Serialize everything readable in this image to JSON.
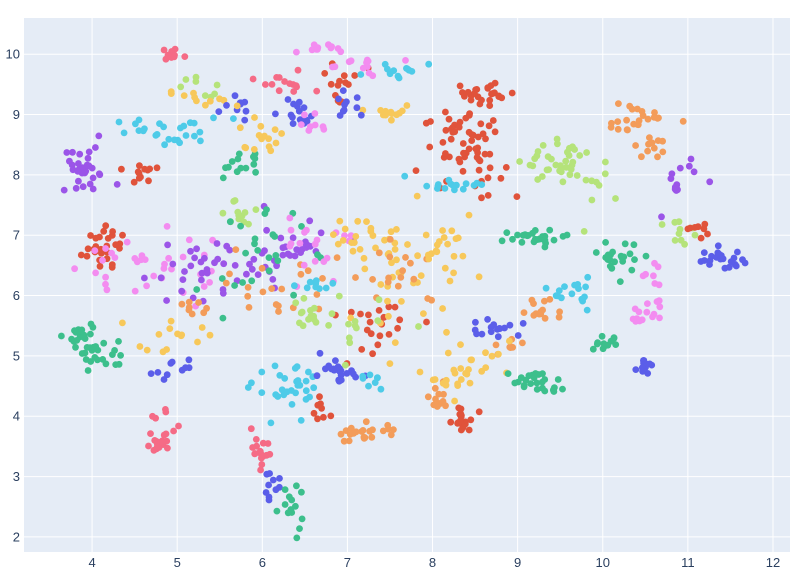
{
  "chart_data": {
    "type": "scatter",
    "title": "",
    "xlabel": "",
    "ylabel": "",
    "xlim": [
      3.2,
      12.2
    ],
    "ylim": [
      1.75,
      10.6
    ],
    "x_ticks": [
      4,
      5,
      6,
      7,
      8,
      9,
      10,
      11,
      12
    ],
    "y_ticks": [
      2,
      3,
      4,
      5,
      6,
      7,
      8,
      9,
      10
    ],
    "x_tick_labels": [
      "4",
      "5",
      "6",
      "7",
      "8",
      "9",
      "10",
      "11",
      "12"
    ],
    "y_tick_labels": [
      "2",
      "3",
      "4",
      "5",
      "6",
      "7",
      "8",
      "9",
      "10"
    ],
    "grid": true,
    "legend": "none",
    "colors": {
      "plot_bg": "#e5ecf6",
      "grid": "#ffffff",
      "red": "#e0533b",
      "blue": "#5b5ee9",
      "green": "#3cbf8c",
      "purple": "#9b55e8",
      "orange": "#f39c5a",
      "cyan": "#4ecbe8",
      "pink": "#f56b86",
      "lightgreen": "#b5e37a",
      "magenta": "#f38cf0",
      "yellow": "#f7c85a"
    },
    "clusters": [
      {
        "color": "purple",
        "cx": 3.9,
        "cy": 8.05,
        "sx": 0.18,
        "sy": 0.2,
        "n": 30
      },
      {
        "color": "cyan",
        "cx": 4.95,
        "cy": 8.7,
        "sx": 0.35,
        "sy": 0.12,
        "n": 26
      },
      {
        "color": "pink",
        "cx": 4.95,
        "cy": 10.0,
        "sx": 0.06,
        "sy": 0.05,
        "n": 10
      },
      {
        "color": "lightgreen",
        "cx": 5.2,
        "cy": 9.5,
        "sx": 0.12,
        "sy": 0.1,
        "n": 8
      },
      {
        "color": "yellow",
        "cx": 5.3,
        "cy": 9.25,
        "sx": 0.2,
        "sy": 0.1,
        "n": 10
      },
      {
        "color": "blue",
        "cx": 5.7,
        "cy": 9.1,
        "sx": 0.1,
        "sy": 0.1,
        "n": 10
      },
      {
        "color": "red",
        "cx": 4.55,
        "cy": 8.0,
        "sx": 0.08,
        "sy": 0.1,
        "n": 12
      },
      {
        "color": "red",
        "cx": 4.1,
        "cy": 6.7,
        "sx": 0.12,
        "sy": 0.15,
        "n": 18
      },
      {
        "color": "red",
        "cx": 4.3,
        "cy": 7.0,
        "sx": 0.15,
        "sy": 0.1,
        "n": 10
      },
      {
        "color": "green",
        "cx": 3.9,
        "cy": 5.35,
        "sx": 0.08,
        "sy": 0.15,
        "n": 20
      },
      {
        "color": "green",
        "cx": 4.1,
        "cy": 5.0,
        "sx": 0.15,
        "sy": 0.12,
        "n": 20
      },
      {
        "color": "pink",
        "cx": 4.8,
        "cy": 3.6,
        "sx": 0.08,
        "sy": 0.1,
        "n": 18
      },
      {
        "color": "pink",
        "cx": 4.95,
        "cy": 4.05,
        "sx": 0.15,
        "sy": 0.15,
        "n": 6
      },
      {
        "color": "magenta",
        "cx": 4.6,
        "cy": 6.5,
        "sx": 0.4,
        "sy": 0.35,
        "n": 35
      },
      {
        "color": "purple",
        "cx": 5.3,
        "cy": 6.4,
        "sx": 0.35,
        "sy": 0.3,
        "n": 35
      },
      {
        "color": "blue",
        "cx": 5.0,
        "cy": 4.8,
        "sx": 0.15,
        "sy": 0.08,
        "n": 10
      },
      {
        "color": "yellow",
        "cx": 4.9,
        "cy": 5.3,
        "sx": 0.2,
        "sy": 0.15,
        "n": 14
      },
      {
        "color": "orange",
        "cx": 5.2,
        "cy": 5.8,
        "sx": 0.1,
        "sy": 0.08,
        "n": 8
      },
      {
        "color": "green",
        "cx": 5.75,
        "cy": 8.15,
        "sx": 0.15,
        "sy": 0.1,
        "n": 14
      },
      {
        "color": "lightgreen",
        "cx": 5.7,
        "cy": 7.4,
        "sx": 0.1,
        "sy": 0.12,
        "n": 12
      },
      {
        "color": "yellow",
        "cx": 5.95,
        "cy": 8.6,
        "sx": 0.2,
        "sy": 0.2,
        "n": 16
      },
      {
        "color": "pink",
        "cx": 6.25,
        "cy": 9.5,
        "sx": 0.15,
        "sy": 0.1,
        "n": 14
      },
      {
        "color": "blue",
        "cx": 6.45,
        "cy": 9.0,
        "sx": 0.12,
        "sy": 0.15,
        "n": 16
      },
      {
        "color": "magenta",
        "cx": 6.6,
        "cy": 8.85,
        "sx": 0.1,
        "sy": 0.1,
        "n": 8
      },
      {
        "color": "magenta",
        "cx": 6.65,
        "cy": 10.1,
        "sx": 0.1,
        "sy": 0.05,
        "n": 12
      },
      {
        "color": "red",
        "cx": 6.9,
        "cy": 9.6,
        "sx": 0.15,
        "sy": 0.15,
        "n": 14
      },
      {
        "color": "magenta",
        "cx": 7.1,
        "cy": 9.8,
        "sx": 0.2,
        "sy": 0.1,
        "n": 12
      },
      {
        "color": "cyan",
        "cx": 7.5,
        "cy": 9.7,
        "sx": 0.25,
        "sy": 0.08,
        "n": 12
      },
      {
        "color": "yellow",
        "cx": 7.5,
        "cy": 9.05,
        "sx": 0.15,
        "sy": 0.1,
        "n": 12
      },
      {
        "color": "blue",
        "cx": 7.0,
        "cy": 9.1,
        "sx": 0.12,
        "sy": 0.1,
        "n": 10
      },
      {
        "color": "purple",
        "cx": 6.3,
        "cy": 6.8,
        "sx": 0.3,
        "sy": 0.3,
        "n": 30
      },
      {
        "color": "green",
        "cx": 5.9,
        "cy": 6.6,
        "sx": 0.3,
        "sy": 0.4,
        "n": 25
      },
      {
        "color": "orange",
        "cx": 6.2,
        "cy": 6.1,
        "sx": 0.3,
        "sy": 0.3,
        "n": 20
      },
      {
        "color": "magenta",
        "cx": 6.7,
        "cy": 6.9,
        "sx": 0.25,
        "sy": 0.25,
        "n": 20
      },
      {
        "color": "yellow",
        "cx": 7.2,
        "cy": 6.95,
        "sx": 0.2,
        "sy": 0.15,
        "n": 18
      },
      {
        "color": "lightgreen",
        "cx": 6.6,
        "cy": 5.7,
        "sx": 0.15,
        "sy": 0.12,
        "n": 14
      },
      {
        "color": "cyan",
        "cx": 6.6,
        "cy": 6.2,
        "sx": 0.15,
        "sy": 0.1,
        "n": 10
      },
      {
        "color": "cyan",
        "cx": 6.3,
        "cy": 4.4,
        "sx": 0.2,
        "sy": 0.2,
        "n": 30
      },
      {
        "color": "blue",
        "cx": 6.9,
        "cy": 4.7,
        "sx": 0.15,
        "sy": 0.12,
        "n": 22
      },
      {
        "color": "red",
        "cx": 6.7,
        "cy": 4.1,
        "sx": 0.05,
        "sy": 0.08,
        "n": 8
      },
      {
        "color": "cyan",
        "cx": 7.25,
        "cy": 4.5,
        "sx": 0.08,
        "sy": 0.1,
        "n": 8
      },
      {
        "color": "pink",
        "cx": 5.95,
        "cy": 3.4,
        "sx": 0.08,
        "sy": 0.15,
        "n": 16
      },
      {
        "color": "blue",
        "cx": 6.1,
        "cy": 2.85,
        "sx": 0.05,
        "sy": 0.1,
        "n": 10
      },
      {
        "color": "green",
        "cx": 6.3,
        "cy": 2.5,
        "sx": 0.1,
        "sy": 0.2,
        "n": 14
      },
      {
        "color": "orange",
        "cx": 7.2,
        "cy": 3.7,
        "sx": 0.2,
        "sy": 0.1,
        "n": 22
      },
      {
        "color": "red",
        "cx": 7.4,
        "cy": 5.6,
        "sx": 0.25,
        "sy": 0.3,
        "n": 22
      },
      {
        "color": "yellow",
        "cx": 7.6,
        "cy": 6.2,
        "sx": 0.3,
        "sy": 0.4,
        "n": 30
      },
      {
        "color": "orange",
        "cx": 7.6,
        "cy": 6.4,
        "sx": 0.3,
        "sy": 0.3,
        "n": 18
      },
      {
        "color": "lightgreen",
        "cx": 7.2,
        "cy": 5.4,
        "sx": 0.3,
        "sy": 0.3,
        "n": 12
      },
      {
        "color": "red",
        "cx": 8.4,
        "cy": 8.6,
        "sx": 0.25,
        "sy": 0.3,
        "n": 50
      },
      {
        "color": "red",
        "cx": 8.6,
        "cy": 9.35,
        "sx": 0.2,
        "sy": 0.1,
        "n": 25
      },
      {
        "color": "red",
        "cx": 8.6,
        "cy": 8.0,
        "sx": 0.2,
        "sy": 0.2,
        "n": 12
      },
      {
        "color": "cyan",
        "cx": 8.2,
        "cy": 7.85,
        "sx": 0.25,
        "sy": 0.06,
        "n": 16
      },
      {
        "color": "yellow",
        "cx": 8.1,
        "cy": 6.8,
        "sx": 0.25,
        "sy": 0.3,
        "n": 22
      },
      {
        "color": "blue",
        "cx": 8.75,
        "cy": 5.45,
        "sx": 0.15,
        "sy": 0.1,
        "n": 16
      },
      {
        "color": "orange",
        "cx": 8.9,
        "cy": 5.2,
        "sx": 0.1,
        "sy": 0.1,
        "n": 8
      },
      {
        "color": "yellow",
        "cx": 8.5,
        "cy": 4.9,
        "sx": 0.3,
        "sy": 0.2,
        "n": 18
      },
      {
        "color": "orange",
        "cx": 8.1,
        "cy": 4.3,
        "sx": 0.08,
        "sy": 0.1,
        "n": 12
      },
      {
        "color": "red",
        "cx": 8.35,
        "cy": 3.9,
        "sx": 0.08,
        "sy": 0.1,
        "n": 20
      },
      {
        "color": "yellow",
        "cx": 8.3,
        "cy": 4.6,
        "sx": 0.1,
        "sy": 0.15,
        "n": 10
      },
      {
        "color": "green",
        "cx": 9.2,
        "cy": 4.55,
        "sx": 0.15,
        "sy": 0.1,
        "n": 25
      },
      {
        "color": "green",
        "cx": 9.2,
        "cy": 6.95,
        "sx": 0.25,
        "sy": 0.1,
        "n": 26
      },
      {
        "color": "lightgreen",
        "cx": 9.5,
        "cy": 8.2,
        "sx": 0.2,
        "sy": 0.15,
        "n": 30
      },
      {
        "color": "lightgreen",
        "cx": 9.9,
        "cy": 7.9,
        "sx": 0.15,
        "sy": 0.3,
        "n": 14
      },
      {
        "color": "cyan",
        "cx": 9.6,
        "cy": 6.05,
        "sx": 0.12,
        "sy": 0.12,
        "n": 16
      },
      {
        "color": "orange",
        "cx": 9.3,
        "cy": 5.8,
        "sx": 0.15,
        "sy": 0.1,
        "n": 14
      },
      {
        "color": "orange",
        "cx": 10.4,
        "cy": 8.9,
        "sx": 0.2,
        "sy": 0.15,
        "n": 24
      },
      {
        "color": "orange",
        "cx": 10.55,
        "cy": 8.5,
        "sx": 0.1,
        "sy": 0.1,
        "n": 10
      },
      {
        "color": "green",
        "cx": 10.2,
        "cy": 6.6,
        "sx": 0.15,
        "sy": 0.15,
        "n": 22
      },
      {
        "color": "green",
        "cx": 10.0,
        "cy": 5.2,
        "sx": 0.1,
        "sy": 0.05,
        "n": 12
      },
      {
        "color": "magenta",
        "cx": 10.5,
        "cy": 5.7,
        "sx": 0.1,
        "sy": 0.12,
        "n": 14
      },
      {
        "color": "blue",
        "cx": 10.5,
        "cy": 4.8,
        "sx": 0.05,
        "sy": 0.06,
        "n": 12
      },
      {
        "color": "purple",
        "cx": 10.9,
        "cy": 7.8,
        "sx": 0.1,
        "sy": 0.25,
        "n": 14
      },
      {
        "color": "lightgreen",
        "cx": 10.9,
        "cy": 7.1,
        "sx": 0.08,
        "sy": 0.12,
        "n": 10
      },
      {
        "color": "blue",
        "cx": 11.4,
        "cy": 6.6,
        "sx": 0.15,
        "sy": 0.08,
        "n": 22
      },
      {
        "color": "red",
        "cx": 11.1,
        "cy": 7.1,
        "sx": 0.1,
        "sy": 0.1,
        "n": 8
      },
      {
        "color": "magenta",
        "cx": 10.6,
        "cy": 6.3,
        "sx": 0.1,
        "sy": 0.2,
        "n": 8
      }
    ]
  }
}
